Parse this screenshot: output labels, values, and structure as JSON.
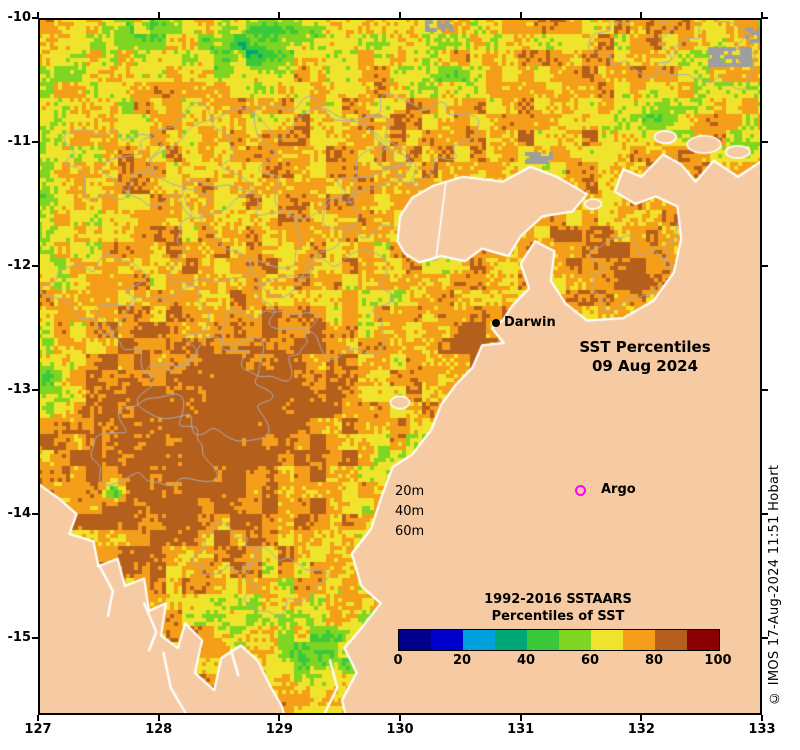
{
  "figure": {
    "title_line1": "SST Percentiles",
    "title_line2": "09 Aug 2024",
    "credit": "© IMOS 17-Aug-2024 11:51 Hobart"
  },
  "annotations": {
    "darwin_label": "Darwin",
    "argo_label": "Argo",
    "depth_labels": [
      "20m",
      "40m",
      "60m"
    ]
  },
  "colorbar": {
    "title_line1": "1992-2016 SSTAARS",
    "title_line2": "Percentiles of SST",
    "tick_labels": [
      "0",
      "20",
      "40",
      "60",
      "80",
      "100"
    ],
    "colors": [
      "#00008B",
      "#0000CD",
      "#00A0DC",
      "#00A878",
      "#3BC93B",
      "#7FD622",
      "#EFE32B",
      "#F59E19",
      "#B55F1D",
      "#8B0000"
    ]
  },
  "axes": {
    "x_tick_labels": [
      "127",
      "128",
      "129",
      "130",
      "131",
      "132",
      "133"
    ],
    "y_tick_labels": [
      "-10",
      "-11",
      "-12",
      "-13",
      "-14",
      "-15"
    ]
  },
  "map": {
    "land_color": "#F6CBA3",
    "coast_color": "#FFFFFF",
    "contour_color": "#ADADAD",
    "nodata_color": "#9E9E9E",
    "palette": [
      "#00008B",
      "#0000CD",
      "#00A0DC",
      "#00A878",
      "#3BC93B",
      "#7FD622",
      "#EFE32B",
      "#F59E19",
      "#B55F1D",
      "#8B0000"
    ],
    "field": {
      "base": 73,
      "bumps": [
        [
          128.35,
          -13.35,
          15,
          1.05,
          0.75
        ],
        [
          128.0,
          -13.9,
          7,
          0.55,
          0.4
        ],
        [
          128.9,
          -12.95,
          7,
          0.6,
          0.45
        ],
        [
          131.9,
          -12.05,
          13,
          0.45,
          0.3
        ],
        [
          130.75,
          -12.6,
          9,
          0.3,
          0.25
        ],
        [
          130.4,
          -12.95,
          7,
          0.28,
          0.22
        ],
        [
          132.6,
          -11.6,
          6,
          0.5,
          0.3
        ],
        [
          127.5,
          -10.4,
          -9,
          0.8,
          0.45
        ],
        [
          127.15,
          -11.9,
          -7,
          0.4,
          1.0
        ],
        [
          128.9,
          -10.18,
          -8,
          0.9,
          0.3
        ],
        [
          130.4,
          -10.2,
          -6,
          0.7,
          0.3
        ],
        [
          132.7,
          -10.4,
          -7,
          0.55,
          0.35
        ],
        [
          130.05,
          -13.9,
          -10,
          0.38,
          0.85
        ],
        [
          129.15,
          -14.9,
          -9,
          0.7,
          0.5
        ],
        [
          129.75,
          -12.4,
          -6,
          0.3,
          0.4
        ],
        [
          127.08,
          -12.9,
          -24,
          0.15,
          0.13
        ],
        [
          127.2,
          -13.15,
          -20,
          0.13,
          0.1
        ],
        [
          127.05,
          -11.25,
          -16,
          0.13,
          0.3
        ],
        [
          128.75,
          -10.22,
          -22,
          0.3,
          0.18
        ],
        [
          129.15,
          -10.1,
          -18,
          0.22,
          0.12
        ],
        [
          127.95,
          -10.08,
          -15,
          0.25,
          0.1
        ],
        [
          132.15,
          -10.8,
          -20,
          0.3,
          0.2
        ],
        [
          132.92,
          -11.05,
          -16,
          0.2,
          0.14
        ],
        [
          129.35,
          -15.12,
          -18,
          0.25,
          0.16
        ],
        [
          128.62,
          -14.86,
          -13,
          0.2,
          0.12
        ],
        [
          129.7,
          -15.45,
          -15,
          0.22,
          0.15
        ],
        [
          130.45,
          -10.55,
          -12,
          0.3,
          0.16
        ],
        [
          127.65,
          -13.82,
          -38,
          0.1,
          0.08
        ]
      ]
    },
    "polygons": {
      "mainland": [
        [
          133.05,
          -11.12
        ],
        [
          132.8,
          -11.28
        ],
        [
          132.6,
          -11.15
        ],
        [
          132.45,
          -11.32
        ],
        [
          132.33,
          -11.18
        ],
        [
          132.18,
          -11.1
        ],
        [
          132.0,
          -11.28
        ],
        [
          131.85,
          -11.22
        ],
        [
          131.78,
          -11.4
        ],
        [
          131.95,
          -11.5
        ],
        [
          132.12,
          -11.44
        ],
        [
          132.3,
          -11.52
        ],
        [
          132.33,
          -11.78
        ],
        [
          132.27,
          -12.05
        ],
        [
          132.1,
          -12.28
        ],
        [
          131.85,
          -12.42
        ],
        [
          131.55,
          -12.44
        ],
        [
          131.37,
          -12.3
        ],
        [
          131.25,
          -12.12
        ],
        [
          131.28,
          -11.88
        ],
        [
          131.12,
          -11.8
        ],
        [
          131.0,
          -11.98
        ],
        [
          131.07,
          -12.18
        ],
        [
          130.93,
          -12.32
        ],
        [
          130.85,
          -12.44
        ],
        [
          130.76,
          -12.5
        ],
        [
          130.86,
          -12.62
        ],
        [
          130.68,
          -12.64
        ],
        [
          130.6,
          -12.82
        ],
        [
          130.46,
          -12.96
        ],
        [
          130.34,
          -13.12
        ],
        [
          130.26,
          -13.32
        ],
        [
          130.1,
          -13.52
        ],
        [
          129.94,
          -13.62
        ],
        [
          129.84,
          -13.88
        ],
        [
          129.76,
          -14.12
        ],
        [
          129.6,
          -14.32
        ],
        [
          129.68,
          -14.58
        ],
        [
          129.84,
          -14.72
        ],
        [
          129.68,
          -14.92
        ],
        [
          129.54,
          -15.08
        ],
        [
          129.64,
          -15.28
        ],
        [
          129.52,
          -15.5
        ],
        [
          129.58,
          -15.75
        ],
        [
          133.05,
          -15.75
        ]
      ],
      "kimberley": [
        [
          126.95,
          -13.72
        ],
        [
          127.18,
          -13.88
        ],
        [
          127.32,
          -14.0
        ],
        [
          127.26,
          -14.16
        ],
        [
          127.46,
          -14.22
        ],
        [
          127.5,
          -14.42
        ],
        [
          127.66,
          -14.36
        ],
        [
          127.72,
          -14.58
        ],
        [
          127.88,
          -14.52
        ],
        [
          127.92,
          -14.78
        ],
        [
          128.06,
          -14.72
        ],
        [
          128.02,
          -14.98
        ],
        [
          128.16,
          -15.08
        ],
        [
          128.22,
          -14.88
        ],
        [
          128.36,
          -15.02
        ],
        [
          128.3,
          -15.28
        ],
        [
          128.46,
          -15.42
        ],
        [
          128.52,
          -15.16
        ],
        [
          128.68,
          -15.06
        ],
        [
          128.82,
          -15.18
        ],
        [
          128.92,
          -15.38
        ],
        [
          129.02,
          -15.55
        ],
        [
          129.08,
          -15.75
        ],
        [
          126.95,
          -15.75
        ]
      ],
      "tiwi": [
        [
          129.98,
          -11.8
        ],
        [
          130.0,
          -11.6
        ],
        [
          130.1,
          -11.45
        ],
        [
          130.28,
          -11.35
        ],
        [
          130.52,
          -11.28
        ],
        [
          130.85,
          -11.32
        ],
        [
          131.08,
          -11.2
        ],
        [
          131.3,
          -11.28
        ],
        [
          131.55,
          -11.42
        ],
        [
          131.43,
          -11.56
        ],
        [
          131.18,
          -11.6
        ],
        [
          131.0,
          -11.76
        ],
        [
          130.9,
          -11.92
        ],
        [
          130.68,
          -11.86
        ],
        [
          130.54,
          -11.96
        ],
        [
          130.34,
          -11.92
        ],
        [
          130.16,
          -11.97
        ],
        [
          130.04,
          -11.9
        ]
      ]
    },
    "islands": [
      [
        132.52,
        -11.02,
        0.14,
        0.07
      ],
      [
        132.8,
        -11.08,
        0.1,
        0.05
      ],
      [
        132.2,
        -10.96,
        0.09,
        0.05
      ],
      [
        130.0,
        -13.1,
        0.08,
        0.05
      ],
      [
        131.6,
        -11.5,
        0.07,
        0.04
      ]
    ],
    "nodata_patches": [
      [
        132.72,
        -10.3,
        0.34,
        0.14
      ],
      [
        132.95,
        -10.12,
        0.18,
        0.1
      ],
      [
        131.15,
        -11.12,
        0.22,
        0.08
      ],
      [
        130.3,
        -10.05,
        0.25,
        0.07
      ],
      [
        132.35,
        -11.42,
        0.12,
        0.08
      ]
    ],
    "contour_loops": [
      [
        129.0,
        -11.35,
        0.85
      ],
      [
        129.35,
        -11.1,
        0.55
      ],
      [
        128.6,
        -11.75,
        0.5
      ],
      [
        129.85,
        -11.45,
        0.42
      ],
      [
        128.2,
        -11.2,
        0.5
      ],
      [
        129.45,
        -12.3,
        0.5
      ],
      [
        128.9,
        -12.6,
        0.35
      ],
      [
        130.15,
        -10.95,
        0.4
      ],
      [
        131.9,
        -12.05,
        0.33
      ],
      [
        132.45,
        -11.85,
        0.25
      ],
      [
        132.6,
        -10.3,
        0.33
      ],
      [
        131.95,
        -10.2,
        0.3
      ],
      [
        128.0,
        -12.5,
        0.4
      ],
      [
        127.6,
        -11.15,
        0.35
      ],
      [
        129.0,
        -14.55,
        0.3
      ],
      [
        128.55,
        -14.3,
        0.24
      ],
      [
        127.95,
        -13.45,
        0.45
      ],
      [
        128.45,
        -13.0,
        0.5
      ],
      [
        127.5,
        -12.2,
        0.35
      ],
      [
        130.3,
        -11.7,
        0.25
      ]
    ],
    "inlets": [
      [
        [
          128.04,
          -15.12
        ],
        [
          128.1,
          -15.4
        ],
        [
          128.22,
          -15.6
        ],
        [
          128.18,
          -15.75
        ]
      ],
      [
        [
          127.5,
          -14.4
        ],
        [
          127.62,
          -14.62
        ],
        [
          127.58,
          -14.82
        ]
      ],
      [
        [
          127.88,
          -14.72
        ],
        [
          127.98,
          -14.95
        ],
        [
          127.92,
          -15.1
        ]
      ],
      [
        [
          129.42,
          -15.18
        ],
        [
          129.48,
          -15.4
        ],
        [
          129.38,
          -15.6
        ]
      ],
      [
        [
          128.6,
          -15.1
        ],
        [
          128.66,
          -15.3
        ]
      ]
    ],
    "strait": [
      [
        130.38,
        -11.33
      ],
      [
        130.3,
        -11.93
      ]
    ]
  }
}
